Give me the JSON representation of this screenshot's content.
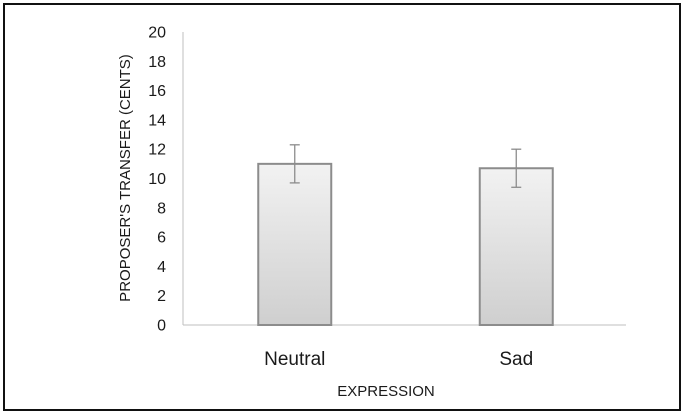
{
  "chart_data": {
    "type": "bar",
    "title": "",
    "xlabel": "EXPRESSION",
    "ylabel": "PROPOSER'S TRANSFER (CENTS)",
    "ylim": [
      0,
      20
    ],
    "yticks": [
      0,
      2,
      4,
      6,
      8,
      10,
      12,
      14,
      16,
      18,
      20
    ],
    "categories": [
      "Neutral",
      "Sad"
    ],
    "values": [
      11.0,
      10.7
    ],
    "error_bars": [
      1.3,
      1.3
    ],
    "grid": false,
    "legend": "none",
    "bar_fill_top": "#f2f2f2",
    "bar_fill_bottom": "#cfcfcf",
    "bar_stroke": "#8c8c8c",
    "axis_color": "#bfbfbf"
  }
}
